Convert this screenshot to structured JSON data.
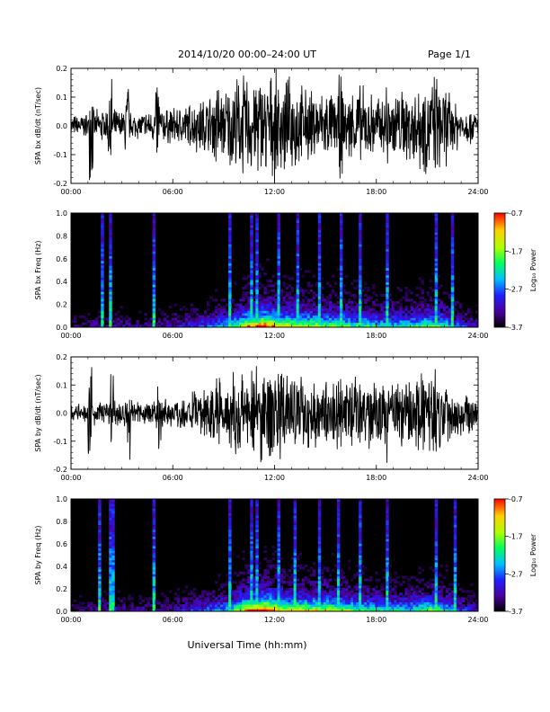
{
  "header": {
    "title": "2014/10/20  00:00–24:00 UT",
    "page": "Page 1/1"
  },
  "xlabel": "Universal Time (hh:mm)",
  "colorbar": {
    "label": "Log₁₀ Power",
    "ticks": [
      "-0.7",
      "-1.7",
      "-2.7",
      "-3.7"
    ],
    "range": [
      -3.7,
      -0.7
    ],
    "colors": [
      "#000000",
      "#4b00a0",
      "#2020ff",
      "#00c0ff",
      "#00ff60",
      "#b0ff00",
      "#ffd000",
      "#ff0000"
    ]
  },
  "chart_data": [
    {
      "type": "line",
      "ylabel": "SPA bx dB/dt (nT/sec)",
      "xlim": [
        0,
        24
      ],
      "ylim": [
        -0.2,
        0.2
      ],
      "x_ticks": [
        "00:00",
        "06:00",
        "12:00",
        "18:00",
        "24:00"
      ],
      "y_ticks": [
        "0.2",
        "0.1",
        "0.0",
        "-0.1",
        "-0.2"
      ],
      "envelope": {
        "x_hours": [
          0,
          1,
          2,
          3,
          4,
          5,
          6,
          7,
          8,
          9,
          10,
          10.5,
          11,
          12,
          13,
          14,
          15,
          16,
          17,
          18,
          19,
          20,
          21,
          22,
          23,
          24
        ],
        "amplitude": [
          0.04,
          0.05,
          0.07,
          0.06,
          0.05,
          0.07,
          0.07,
          0.09,
          0.12,
          0.14,
          0.2,
          0.2,
          0.2,
          0.2,
          0.18,
          0.14,
          0.14,
          0.12,
          0.16,
          0.12,
          0.14,
          0.15,
          0.2,
          0.16,
          0.08,
          0.06
        ]
      },
      "spikes_hours": [
        1.2,
        2.3,
        3.3,
        5.1,
        8.6,
        9.5,
        13.3,
        15.9,
        18.6,
        21.5
      ]
    },
    {
      "type": "heatmap",
      "ylabel": "SPA bx Freq (Hz)",
      "xlim": [
        0,
        24
      ],
      "ylim": [
        0.0,
        1.0
      ],
      "x_ticks": [
        "00:00",
        "06:00",
        "12:00",
        "18:00",
        "24:00"
      ],
      "y_ticks": [
        "1.0",
        "0.8",
        "0.6",
        "0.4",
        "0.2",
        "0.0"
      ],
      "activity": {
        "x_hours": [
          0,
          2,
          4,
          6,
          8,
          9.5,
          10.5,
          11.5,
          12.5,
          14,
          15.5,
          17,
          18.5,
          20,
          21.5,
          23,
          24
        ],
        "level": [
          0.15,
          0.25,
          0.2,
          0.25,
          0.4,
          0.55,
          0.9,
          1.0,
          0.8,
          0.75,
          0.7,
          0.6,
          0.55,
          0.55,
          0.7,
          0.35,
          0.25
        ]
      },
      "streaks_hours": [
        1.8,
        2.3,
        4.9,
        9.4,
        10.6,
        11.0,
        12.2,
        13.3,
        14.6,
        15.9,
        17.1,
        18.6,
        21.5,
        22.5
      ]
    },
    {
      "type": "line",
      "ylabel": "SPA by dB/dt (nT/sec)",
      "xlim": [
        0,
        24
      ],
      "ylim": [
        -0.2,
        0.2
      ],
      "x_ticks": [
        "00:00",
        "06:00",
        "12:00",
        "18:00",
        "24:00"
      ],
      "y_ticks": [
        "0.2",
        "0.1",
        "0.0",
        "-0.1",
        "-0.2"
      ],
      "envelope": {
        "x_hours": [
          0,
          1,
          2,
          3,
          4,
          5,
          6,
          7,
          8,
          9,
          10,
          10.5,
          11,
          12,
          13,
          14,
          15,
          16,
          17,
          18,
          19,
          20,
          21,
          22,
          23,
          24
        ],
        "amplitude": [
          0.03,
          0.04,
          0.06,
          0.06,
          0.05,
          0.07,
          0.06,
          0.08,
          0.11,
          0.13,
          0.2,
          0.2,
          0.2,
          0.2,
          0.17,
          0.14,
          0.13,
          0.12,
          0.15,
          0.12,
          0.13,
          0.14,
          0.19,
          0.15,
          0.09,
          0.06
        ]
      },
      "spikes_hours": [
        1.1,
        2.4,
        3.4,
        5.2,
        8.7,
        9.6,
        13.2,
        15.8,
        18.7,
        21.6
      ]
    },
    {
      "type": "heatmap",
      "ylabel": "SPA by Freq (Hz)",
      "xlim": [
        0,
        24
      ],
      "ylim": [
        0.0,
        1.0
      ],
      "x_ticks": [
        "00:00",
        "06:00",
        "12:00",
        "18:00",
        "24:00"
      ],
      "y_ticks": [
        "1.0",
        "0.8",
        "0.6",
        "0.4",
        "0.2",
        "0.0"
      ],
      "activity": {
        "x_hours": [
          0,
          2,
          4,
          6,
          8,
          9.5,
          10.5,
          11.5,
          12.5,
          14,
          15.5,
          17,
          18.5,
          20,
          21.5,
          23,
          24
        ],
        "level": [
          0.15,
          0.25,
          0.2,
          0.25,
          0.4,
          0.55,
          0.95,
          1.0,
          0.8,
          0.8,
          0.75,
          0.65,
          0.55,
          0.55,
          0.7,
          0.35,
          0.25
        ]
      },
      "streaks_hours": [
        1.7,
        2.4,
        4.9,
        9.4,
        10.7,
        11.0,
        12.3,
        13.2,
        14.7,
        15.8,
        17.0,
        18.7,
        21.5,
        22.6
      ]
    }
  ]
}
